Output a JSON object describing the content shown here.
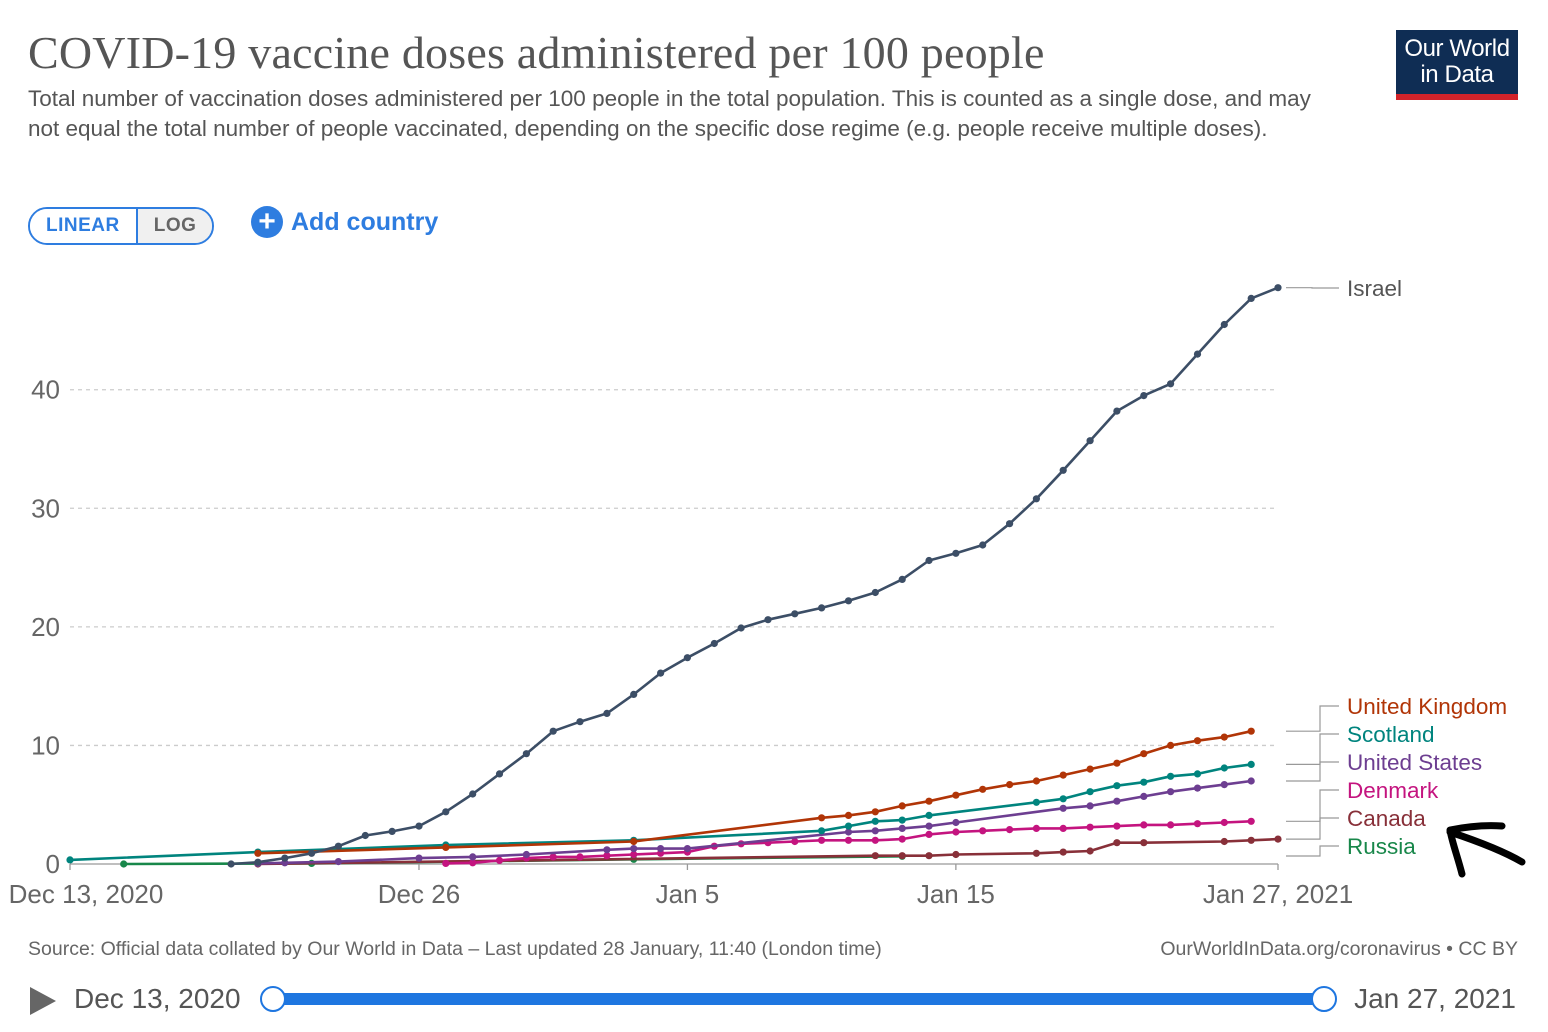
{
  "header": {
    "title": "COVID-19 vaccine doses administered per 100 people",
    "subtitle": "Total number of vaccination doses administered per 100 people in the total population. This is counted as a single dose, and may not equal the total number of people vaccinated, depending on the specific dose regime (e.g. people receive multiple doses).",
    "logo_line1": "Our World",
    "logo_line2": "in Data"
  },
  "controls": {
    "linear_label": "LINEAR",
    "log_label": "LOG",
    "add_country_label": "Add country"
  },
  "footer": {
    "source": "Source: Official data collated by Our World in Data – Last updated 28 January, 11:40 (London time)",
    "url": "OurWorldInData.org/coronavirus • CC BY"
  },
  "timeline": {
    "start_label": "Dec 13, 2020",
    "end_label": "Jan 27, 2021"
  },
  "colors": {
    "Israel": "#3c4e66",
    "United Kingdom": "#b13507",
    "Scotland": "#00847e",
    "United States": "#6d3e91",
    "Denmark": "#c4147f",
    "Canada": "#883039",
    "Russia": "#18874a",
    "grid": "#cccccc",
    "accent": "#2e7de0"
  },
  "chart_data": {
    "type": "line",
    "title": "COVID-19 vaccine doses administered per 100 people",
    "xlabel": "",
    "ylabel": "",
    "x_axis": "date",
    "xlim": [
      "2020-12-13",
      "2021-01-27"
    ],
    "ylim": [
      0,
      49
    ],
    "y_ticks": [
      0,
      10,
      20,
      30,
      40
    ],
    "x_ticks": [
      {
        "date": "2020-12-13",
        "label": "Dec 13, 2020"
      },
      {
        "date": "2020-12-26",
        "label": "Dec 26"
      },
      {
        "date": "2021-01-05",
        "label": "Jan 5"
      },
      {
        "date": "2021-01-15",
        "label": "Jan 15"
      },
      {
        "date": "2021-01-27",
        "label": "Jan 27, 2021"
      }
    ],
    "grid": "horizontal dashed",
    "legend": "right, line-end labels",
    "series": [
      {
        "name": "Israel",
        "points": [
          [
            "2020-12-19",
            0.0
          ],
          [
            "2020-12-20",
            0.15
          ],
          [
            "2020-12-21",
            0.5
          ],
          [
            "2020-12-22",
            0.9
          ],
          [
            "2020-12-23",
            1.5
          ],
          [
            "2020-12-24",
            2.4
          ],
          [
            "2020-12-25",
            2.75
          ],
          [
            "2020-12-26",
            3.2
          ],
          [
            "2020-12-27",
            4.4
          ],
          [
            "2020-12-28",
            5.9
          ],
          [
            "2020-12-29",
            7.6
          ],
          [
            "2020-12-30",
            9.3
          ],
          [
            "2020-12-31",
            11.2
          ],
          [
            "2021-01-01",
            12.0
          ],
          [
            "2021-01-02",
            12.7
          ],
          [
            "2021-01-03",
            14.3
          ],
          [
            "2021-01-04",
            16.1
          ],
          [
            "2021-01-05",
            17.4
          ],
          [
            "2021-01-06",
            18.6
          ],
          [
            "2021-01-07",
            19.9
          ],
          [
            "2021-01-08",
            20.6
          ],
          [
            "2021-01-09",
            21.1
          ],
          [
            "2021-01-10",
            21.6
          ],
          [
            "2021-01-11",
            22.2
          ],
          [
            "2021-01-12",
            22.9
          ],
          [
            "2021-01-13",
            24.0
          ],
          [
            "2021-01-14",
            25.6
          ],
          [
            "2021-01-15",
            26.2
          ],
          [
            "2021-01-16",
            26.9
          ],
          [
            "2021-01-17",
            28.7
          ],
          [
            "2021-01-18",
            30.8
          ],
          [
            "2021-01-19",
            33.2
          ],
          [
            "2021-01-20",
            35.7
          ],
          [
            "2021-01-21",
            38.2
          ],
          [
            "2021-01-22",
            39.5
          ],
          [
            "2021-01-23",
            40.5
          ],
          [
            "2021-01-24",
            43.0
          ],
          [
            "2021-01-25",
            45.5
          ],
          [
            "2021-01-26",
            47.7
          ],
          [
            "2021-01-27",
            48.6
          ]
        ]
      },
      {
        "name": "United Kingdom",
        "points": [
          [
            "2020-12-20",
            0.9
          ],
          [
            "2020-12-27",
            1.4
          ],
          [
            "2021-01-03",
            1.9
          ],
          [
            "2021-01-10",
            3.9
          ],
          [
            "2021-01-11",
            4.1
          ],
          [
            "2021-01-12",
            4.4
          ],
          [
            "2021-01-13",
            4.9
          ],
          [
            "2021-01-14",
            5.3
          ],
          [
            "2021-01-15",
            5.8
          ],
          [
            "2021-01-16",
            6.3
          ],
          [
            "2021-01-17",
            6.7
          ],
          [
            "2021-01-18",
            7.0
          ],
          [
            "2021-01-19",
            7.5
          ],
          [
            "2021-01-20",
            8.0
          ],
          [
            "2021-01-21",
            8.5
          ],
          [
            "2021-01-22",
            9.3
          ],
          [
            "2021-01-23",
            10.0
          ],
          [
            "2021-01-24",
            10.4
          ],
          [
            "2021-01-25",
            10.7
          ],
          [
            "2021-01-26",
            11.2
          ]
        ]
      },
      {
        "name": "Scotland",
        "points": [
          [
            "2020-12-13",
            0.35
          ],
          [
            "2020-12-20",
            1.0
          ],
          [
            "2020-12-27",
            1.6
          ],
          [
            "2021-01-03",
            2.0
          ],
          [
            "2021-01-10",
            2.8
          ],
          [
            "2021-01-11",
            3.2
          ],
          [
            "2021-01-12",
            3.6
          ],
          [
            "2021-01-13",
            3.7
          ],
          [
            "2021-01-14",
            4.1
          ],
          [
            "2021-01-18",
            5.2
          ],
          [
            "2021-01-19",
            5.5
          ],
          [
            "2021-01-20",
            6.1
          ],
          [
            "2021-01-21",
            6.6
          ],
          [
            "2021-01-22",
            6.9
          ],
          [
            "2021-01-23",
            7.4
          ],
          [
            "2021-01-24",
            7.6
          ],
          [
            "2021-01-25",
            8.1
          ],
          [
            "2021-01-26",
            8.4
          ]
        ]
      },
      {
        "name": "United States",
        "points": [
          [
            "2020-12-20",
            0.05
          ],
          [
            "2020-12-21",
            0.1
          ],
          [
            "2020-12-23",
            0.2
          ],
          [
            "2020-12-26",
            0.5
          ],
          [
            "2020-12-28",
            0.6
          ],
          [
            "2020-12-30",
            0.8
          ],
          [
            "2021-01-02",
            1.2
          ],
          [
            "2021-01-03",
            1.3
          ],
          [
            "2021-01-04",
            1.3
          ],
          [
            "2021-01-05",
            1.3
          ],
          [
            "2021-01-11",
            2.7
          ],
          [
            "2021-01-12",
            2.8
          ],
          [
            "2021-01-13",
            3.0
          ],
          [
            "2021-01-14",
            3.2
          ],
          [
            "2021-01-15",
            3.5
          ],
          [
            "2021-01-19",
            4.7
          ],
          [
            "2021-01-20",
            4.9
          ],
          [
            "2021-01-21",
            5.3
          ],
          [
            "2021-01-22",
            5.7
          ],
          [
            "2021-01-23",
            6.1
          ],
          [
            "2021-01-24",
            6.4
          ],
          [
            "2021-01-25",
            6.7
          ],
          [
            "2021-01-26",
            7.0
          ]
        ]
      },
      {
        "name": "Denmark",
        "points": [
          [
            "2020-12-27",
            0.05
          ],
          [
            "2020-12-28",
            0.1
          ],
          [
            "2020-12-29",
            0.3
          ],
          [
            "2020-12-30",
            0.5
          ],
          [
            "2020-12-31",
            0.6
          ],
          [
            "2021-01-01",
            0.6
          ],
          [
            "2021-01-02",
            0.7
          ],
          [
            "2021-01-03",
            0.8
          ],
          [
            "2021-01-04",
            0.9
          ],
          [
            "2021-01-05",
            1.0
          ],
          [
            "2021-01-06",
            1.5
          ],
          [
            "2021-01-07",
            1.7
          ],
          [
            "2021-01-08",
            1.8
          ],
          [
            "2021-01-09",
            1.9
          ],
          [
            "2021-01-10",
            2.0
          ],
          [
            "2021-01-11",
            2.0
          ],
          [
            "2021-01-12",
            2.0
          ],
          [
            "2021-01-13",
            2.1
          ],
          [
            "2021-01-14",
            2.5
          ],
          [
            "2021-01-15",
            2.7
          ],
          [
            "2021-01-16",
            2.8
          ],
          [
            "2021-01-17",
            2.9
          ],
          [
            "2021-01-18",
            3.0
          ],
          [
            "2021-01-19",
            3.0
          ],
          [
            "2021-01-20",
            3.1
          ],
          [
            "2021-01-21",
            3.2
          ],
          [
            "2021-01-22",
            3.3
          ],
          [
            "2021-01-23",
            3.3
          ],
          [
            "2021-01-24",
            3.4
          ],
          [
            "2021-01-25",
            3.5
          ],
          [
            "2021-01-26",
            3.6
          ]
        ]
      },
      {
        "name": "Canada",
        "points": [
          [
            "2020-12-20",
            0.0
          ],
          [
            "2021-01-12",
            0.7
          ],
          [
            "2021-01-13",
            0.7
          ],
          [
            "2021-01-14",
            0.7
          ],
          [
            "2021-01-15",
            0.8
          ],
          [
            "2021-01-18",
            0.9
          ],
          [
            "2021-01-19",
            1.0
          ],
          [
            "2021-01-20",
            1.1
          ],
          [
            "2021-01-21",
            1.8
          ],
          [
            "2021-01-22",
            1.8
          ],
          [
            "2021-01-25",
            1.9
          ],
          [
            "2021-01-26",
            2.0
          ],
          [
            "2021-01-27",
            2.1
          ]
        ]
      },
      {
        "name": "Russia",
        "points": [
          [
            "2020-12-15",
            0.0
          ],
          [
            "2020-12-22",
            0.05
          ],
          [
            "2021-01-03",
            0.4
          ],
          [
            "2021-01-13",
            0.65
          ]
        ]
      }
    ],
    "labels": [
      {
        "name": "Israel",
        "text": "Israel"
      },
      {
        "name": "United Kingdom",
        "text": "United Kingdom"
      },
      {
        "name": "Scotland",
        "text": "Scotland"
      },
      {
        "name": "United States",
        "text": "United States"
      },
      {
        "name": "Denmark",
        "text": "Denmark"
      },
      {
        "name": "Canada",
        "text": "Canada"
      },
      {
        "name": "Russia",
        "text": "Russia"
      }
    ]
  }
}
